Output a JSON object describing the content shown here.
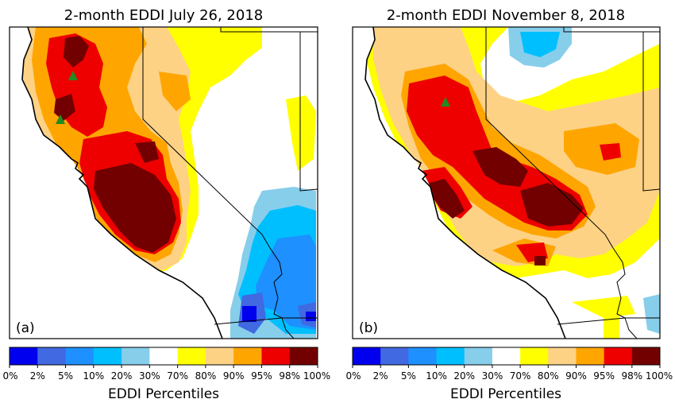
{
  "panels": [
    {
      "title": "2-month EDDI July 26, 2018",
      "label": "(a)",
      "markers": "green-triangle"
    },
    {
      "title": "2-month EDDI November 8, 2018",
      "label": "(b)",
      "markers": "green-triangle"
    }
  ],
  "colorbar": {
    "title": "EDDI Percentiles",
    "ticks": [
      "0%",
      "2%",
      "5%",
      "10%",
      "20%",
      "30%",
      "70%",
      "80%",
      "90%",
      "95%",
      "98%",
      "100%"
    ],
    "colors": [
      "#0000ee",
      "#4169e1",
      "#1e90ff",
      "#00bfff",
      "#87ceeb",
      "#ffffff",
      "#ffff00",
      "#fdd285",
      "#ffa500",
      "#ee0000",
      "#730000"
    ]
  },
  "colors": {
    "marker": "#228b22",
    "boundary": "#000000"
  }
}
